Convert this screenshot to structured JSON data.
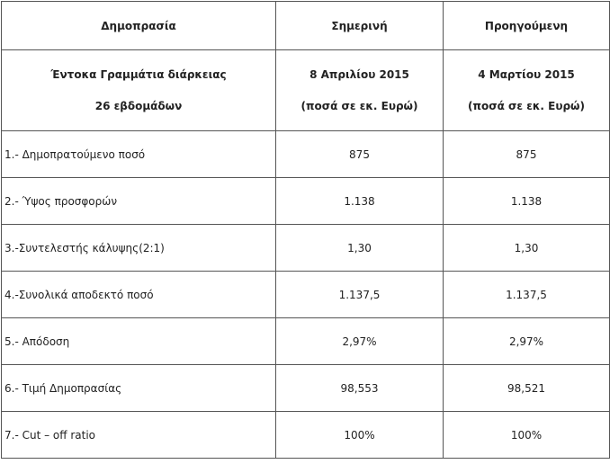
{
  "table": {
    "header": [
      "Δημοπρασία",
      "Σημερινή",
      "Προηγούμενη"
    ],
    "subheader": [
      [
        "Έντοκα Γραμμάτια διάρκειας",
        "26 εβδομάδων"
      ],
      [
        "8 Απριλίου 2015",
        "(ποσά σε εκ. Ευρώ)"
      ],
      [
        "4 Μαρτίου 2015",
        "(ποσά σε εκ. Ευρώ)"
      ]
    ],
    "rows": [
      [
        "1.- Δημοπρατούμενο ποσό",
        "875",
        "875"
      ],
      [
        "2.- Ύψος προσφορών",
        "1.138",
        "1.138"
      ],
      [
        "3.-Συντελεστής κάλυψης(2:1)",
        "1,30",
        "1,30"
      ],
      [
        "4.-Συνολικά αποδεκτό ποσό",
        "1.137,5",
        "1.137,5"
      ],
      [
        "5.- Απόδοση",
        "2,97%",
        "2,97%"
      ],
      [
        "6.- Τιμή Δημοπρασίας",
        "98,553",
        "98,521"
      ],
      [
        "7.- Cut – off ratio",
        "100%",
        "100%"
      ]
    ]
  }
}
